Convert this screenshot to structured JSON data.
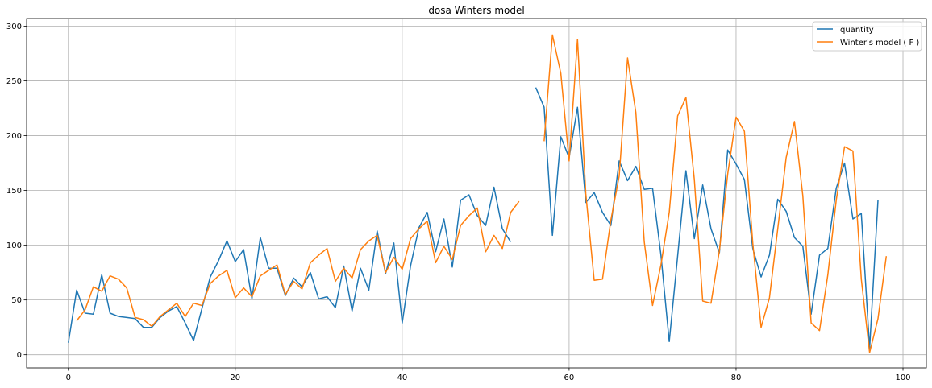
{
  "chart_data": {
    "type": "line",
    "title": "dosa Winters model",
    "xlabel": "",
    "ylabel": "",
    "xlim": [
      -5,
      102.8
    ],
    "ylim": [
      -12,
      307
    ],
    "xticks": [
      0,
      20,
      40,
      60,
      80,
      100
    ],
    "yticks": [
      0,
      50,
      100,
      150,
      200,
      250,
      300
    ],
    "grid": true,
    "legend_position": "top-right",
    "series": [
      {
        "name": "quantity",
        "color": "#1f77b4",
        "segments": [
          {
            "x": [
              0,
              1,
              2,
              3,
              4,
              5,
              6,
              7,
              8,
              9,
              10,
              11,
              12,
              13,
              14,
              15,
              16,
              17,
              18,
              19,
              20,
              21,
              22,
              23,
              24,
              25,
              26,
              27,
              28,
              29,
              30,
              31,
              32,
              33,
              34,
              35,
              36,
              37,
              38,
              39,
              40,
              41,
              42,
              43,
              44,
              45,
              46,
              47,
              48,
              49,
              50,
              51,
              52,
              53
            ],
            "y": [
              11,
              59,
              38,
              37,
              73,
              38,
              35,
              34,
              33,
              25,
              25,
              34,
              40,
              44,
              29,
              13,
              42,
              71,
              86,
              104,
              85,
              96,
              51,
              107,
              79,
              79,
              54,
              70,
              62,
              75,
              51,
              53,
              43,
              81,
              40,
              79,
              59,
              113,
              74,
              102,
              29,
              81,
              116,
              130,
              94,
              124,
              80,
              141,
              146,
              127,
              118,
              153,
              115,
              103
            ]
          },
          {
            "x": [
              56,
              57,
              58,
              59,
              60,
              61,
              62,
              63,
              64,
              65,
              66,
              67,
              68,
              69,
              70,
              71,
              72,
              73,
              74,
              75,
              76,
              77,
              78,
              79,
              80,
              81,
              82,
              83,
              84,
              85,
              86,
              87,
              88,
              89,
              90,
              91,
              92,
              93,
              94,
              95,
              96,
              97
            ],
            "y": [
              244,
              226,
              109,
              199,
              180,
              226,
              139,
              148,
              130,
              118,
              177,
              159,
              172,
              151,
              152,
              91,
              12,
              90,
              168,
              106,
              155,
              115,
              93,
              187,
              174,
              160,
              97,
              71,
              91,
              142,
              131,
              107,
              99,
              37,
              91,
              97,
              152,
              175,
              124,
              129,
              6,
              141
            ]
          }
        ]
      },
      {
        "name": "Winter's model ( F )",
        "color": "#ff7f0e",
        "segments": [
          {
            "x": [
              1,
              2,
              3,
              4,
              5,
              6,
              7,
              8,
              9,
              10,
              11,
              12,
              13,
              14,
              15,
              16,
              17,
              18,
              19,
              20,
              21,
              22,
              23,
              24,
              25,
              26,
              27,
              28,
              29,
              30,
              31,
              32,
              33,
              34,
              35,
              36,
              37,
              38,
              39,
              40,
              41,
              42,
              43,
              44,
              45,
              46,
              47,
              48,
              49,
              50,
              51,
              52,
              53,
              54
            ],
            "y": [
              31,
              41,
              62,
              58,
              72,
              69,
              61,
              34,
              32,
              26,
              35,
              41,
              47,
              35,
              47,
              45,
              65,
              72,
              77,
              52,
              61,
              53,
              72,
              77,
              82,
              55,
              67,
              60,
              84,
              91,
              97,
              67,
              79,
              70,
              96,
              104,
              109,
              75,
              89,
              78,
              106,
              115,
              122,
              84,
              99,
              87,
              118,
              127,
              134,
              94,
              109,
              97,
              130,
              140
            ]
          },
          {
            "x": [
              57,
              58,
              59,
              60,
              61,
              62,
              63,
              64,
              65,
              66,
              67,
              68,
              69,
              70,
              71,
              72,
              73,
              74,
              75,
              76,
              77,
              78,
              79,
              80,
              81,
              82,
              83,
              84,
              85,
              86,
              87,
              88,
              89,
              90,
              91,
              92,
              93,
              94,
              95,
              96,
              97,
              98
            ],
            "y": [
              195,
              292,
              257,
              177,
              288,
              147,
              68,
              69,
              123,
              163,
              271,
              221,
              103,
              45,
              82,
              130,
              218,
              235,
              160,
              49,
              47,
              95,
              165,
              217,
              204,
              102,
              25,
              52,
              115,
              180,
              213,
              145,
              29,
              22,
              73,
              141,
              190,
              186,
              69,
              2,
              33,
              90
            ]
          }
        ]
      }
    ]
  }
}
